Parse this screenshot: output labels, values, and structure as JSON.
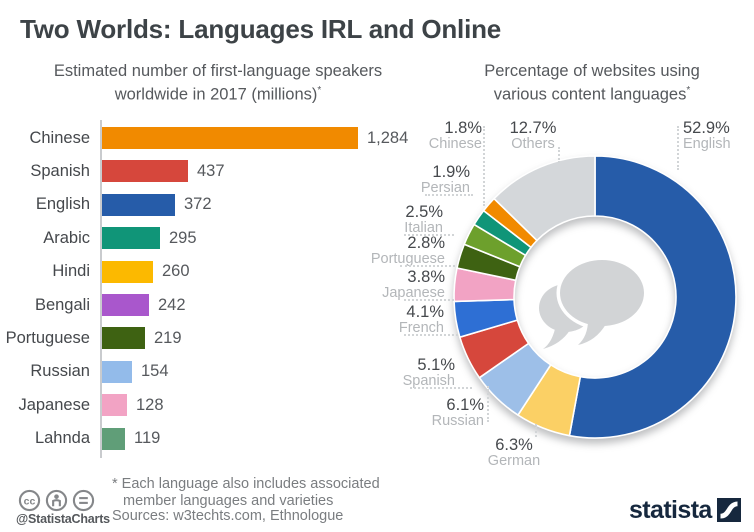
{
  "header": {
    "title": "Two Worlds: Languages IRL and Online"
  },
  "chart_data": [
    {
      "type": "bar",
      "orientation": "horizontal",
      "title_line1": "Estimated number of first-language speakers",
      "title_line2": "worldwide in 2017 (millions)",
      "title_sup": "*",
      "categories": [
        "Chinese",
        "Spanish",
        "English",
        "Arabic",
        "Hindi",
        "Bengali",
        "Portuguese",
        "Russian",
        "Japanese",
        "Lahnda"
      ],
      "values": [
        1284,
        437,
        372,
        295,
        260,
        242,
        219,
        154,
        128,
        119
      ],
      "value_labels": [
        "1,284",
        "437",
        "372",
        "295",
        "260",
        "242",
        "219",
        "154",
        "128",
        "119"
      ],
      "colors": [
        "#f18a00",
        "#d6473c",
        "#265ca9",
        "#109578",
        "#fcb900",
        "#a957cc",
        "#3e6212",
        "#93bbea",
        "#f2a3c4",
        "#609e78"
      ],
      "xlim": [
        0,
        1350
      ],
      "grid": false
    },
    {
      "type": "pie",
      "donut": true,
      "title_line1": "Percentage of websites using",
      "title_line2": "various content languages",
      "title_sup": "*",
      "start_angle": "top",
      "direction": "clockwise",
      "labels": [
        "English",
        "German",
        "Russian",
        "Spanish",
        "French",
        "Japanese",
        "Portuguese",
        "Italian",
        "Persian",
        "Chinese",
        "Others"
      ],
      "values": [
        52.9,
        6.3,
        6.1,
        5.1,
        4.1,
        3.8,
        2.8,
        2.5,
        1.9,
        1.8,
        12.7
      ],
      "value_labels": [
        "52.9%",
        "6.3%",
        "6.1%",
        "5.1%",
        "4.1%",
        "3.8%",
        "2.8%",
        "2.5%",
        "1.9%",
        "1.8%",
        "12.7%"
      ],
      "colors": [
        "#265ca9",
        "#fbd065",
        "#9dbfe8",
        "#d6473c",
        "#2e6fd4",
        "#f2a3c4",
        "#3e6212",
        "#6da02c",
        "#109578",
        "#f18a00",
        "#d4d7da"
      ],
      "legend_position": "none",
      "center_icon": "speech-bubbles-icon"
    }
  ],
  "footer": {
    "note_line1": "* Each language also includes associated",
    "note_line2": "member languages and varieties",
    "sources": "Sources: w3techts.com, Ethnologue",
    "credit": "@StatistaCharts",
    "logo_text": "statista"
  },
  "colors": {
    "title_text": "#3d4347",
    "subtitle_text": "#56595d",
    "pct_label": "#46494d",
    "name_label": "#b3b6b9",
    "leader_dots": "#d2d5d7",
    "axis": "#c9cbce",
    "footnote": "#7a7d80",
    "cc_icon": "#85878a",
    "logo_navy": "#16283e",
    "bubble_gray": "#d2d4d6"
  }
}
